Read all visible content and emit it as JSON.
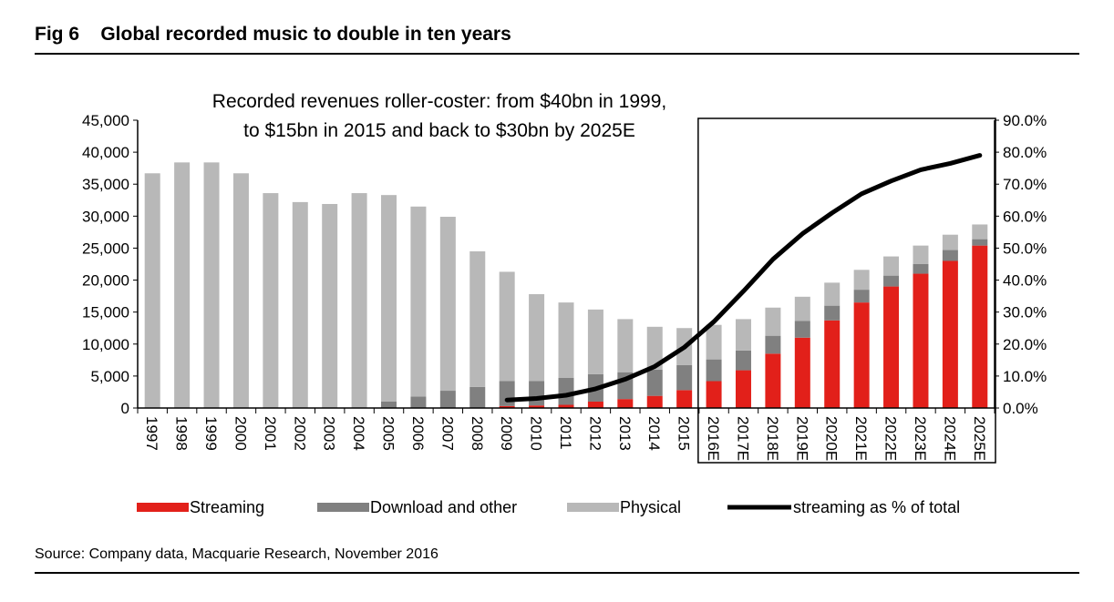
{
  "figure": {
    "title": "Fig 6    Global recorded music to double in ten years",
    "source": "Source: Company data, Macquarie Research, November 2016"
  },
  "chart_data": {
    "type": "bar",
    "stacked": true,
    "annotation": [
      "Recorded revenues roller-coster: from $40bn in 1999,",
      "to $15bn in 2015 and back to $30bn by 2025E"
    ],
    "categories": [
      "1997",
      "1998",
      "1999",
      "2000",
      "2001",
      "2002",
      "2003",
      "2004",
      "2005",
      "2006",
      "2007",
      "2008",
      "2009",
      "2010",
      "2011",
      "2012",
      "2013",
      "2014",
      "2015",
      "2016E",
      "2017E",
      "2018E",
      "2019E",
      "2020E",
      "2021E",
      "2022E",
      "2023E",
      "2024E",
      "2025E"
    ],
    "y_ticks": [
      "0",
      "5,000",
      "10,000",
      "15,000",
      "20,000",
      "25,000",
      "30,000",
      "35,000",
      "40,000",
      "45,000"
    ],
    "y2_ticks": [
      "0.0%",
      "10.0%",
      "20.0%",
      "30.0%",
      "40.0%",
      "50.0%",
      "60.0%",
      "70.0%",
      "80.0%",
      "90.0%"
    ],
    "ylim": [
      0,
      45000
    ],
    "y2lim": [
      0,
      90
    ],
    "highlight_box_from": "2016E",
    "series": [
      {
        "name": "Streaming",
        "color": "#e2201a",
        "axis": "left",
        "values": [
          0,
          0,
          0,
          0,
          0,
          0,
          0,
          0,
          0,
          0,
          0,
          0,
          300,
          400,
          500,
          1000,
          1400,
          1900,
          2800,
          4200,
          5900,
          8500,
          11000,
          13700,
          16500,
          19000,
          21000,
          23000,
          25400
        ]
      },
      {
        "name": "Download and other",
        "color": "#808080",
        "axis": "left",
        "values": [
          0,
          0,
          0,
          0,
          0,
          0,
          0,
          0,
          1000,
          1800,
          2700,
          3300,
          3900,
          3800,
          4200,
          4300,
          4200,
          4100,
          3900,
          3400,
          3100,
          2800,
          2600,
          2300,
          2000,
          1700,
          1500,
          1700,
          1000
        ]
      },
      {
        "name": "Physical",
        "color": "#b8b8b8",
        "axis": "left",
        "values": [
          36700,
          38400,
          38400,
          36700,
          33600,
          32200,
          31900,
          33600,
          32300,
          29700,
          27200,
          21200,
          17100,
          13600,
          11800,
          10100,
          8300,
          6700,
          5800,
          5400,
          4900,
          4400,
          3800,
          3600,
          3100,
          3000,
          2900,
          2400,
          2300
        ]
      },
      {
        "name": "streaming as % of total",
        "color": "#000000",
        "axis": "right",
        "kind": "line",
        "start": "2009",
        "values": [
          null,
          null,
          null,
          null,
          null,
          null,
          null,
          null,
          null,
          null,
          null,
          null,
          2.5,
          3.0,
          4.0,
          6.0,
          9.0,
          13.0,
          19.0,
          27.0,
          36.5,
          46.5,
          54.5,
          61.0,
          67.0,
          71.0,
          74.5,
          76.5,
          79.0
        ]
      }
    ]
  }
}
